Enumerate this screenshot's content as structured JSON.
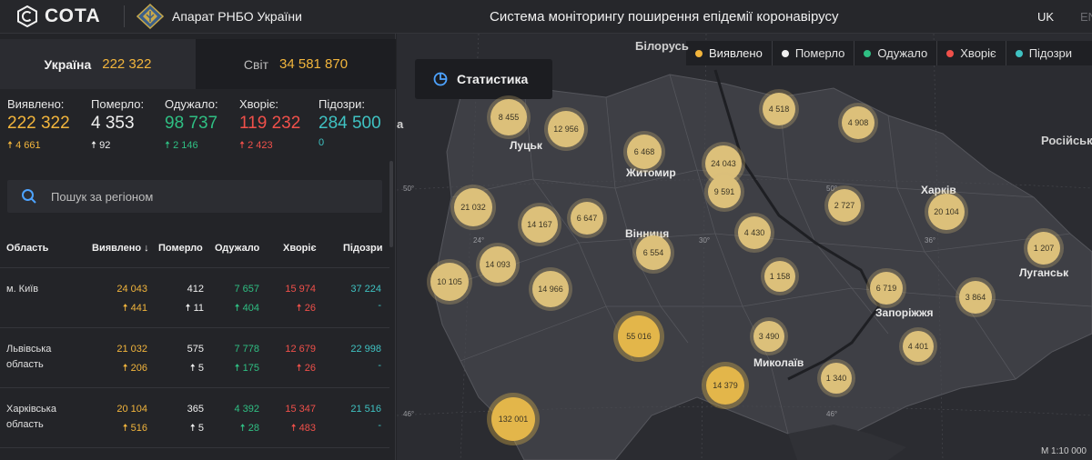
{
  "header": {
    "brand": "СОТА",
    "org": "Апарат РНБО України",
    "title": "Система моніторингу поширення епідемії коронавірусу",
    "lang_active": "UK",
    "lang_other": "EN"
  },
  "tabs": {
    "ukraine": {
      "label": "Україна",
      "value": "222 322"
    },
    "world": {
      "label": "Світ",
      "value": "34 581 870"
    }
  },
  "stats": [
    {
      "label": "Виявлено:",
      "value": "222 322",
      "delta": "4 661",
      "color": "#f2b53c"
    },
    {
      "label": "Померло:",
      "value": "4 353",
      "delta": "92",
      "color": "#f0f0f0"
    },
    {
      "label": "Одужало:",
      "value": "98 737",
      "delta": "2 146",
      "color": "#2fbf83"
    },
    {
      "label": "Хворіє:",
      "value": "119 232",
      "delta": "2 423",
      "color": "#f0504a"
    },
    {
      "label": "Підозри:",
      "value": "284 500",
      "delta": "0",
      "color": "#3fc2c2"
    }
  ],
  "search": {
    "placeholder": "Пошук за регіоном"
  },
  "table": {
    "headers": {
      "region": "Область",
      "detected": "Виявлено",
      "died": "Померло",
      "recovered": "Одужало",
      "sick": "Хворіє",
      "suspected": "Підозри"
    },
    "rows": [
      {
        "region": "м. Київ",
        "detected": "24 043",
        "detected_d": "441",
        "died": "412",
        "died_d": "11",
        "recovered": "7 657",
        "recovered_d": "404",
        "sick": "15 974",
        "sick_d": "26",
        "suspected": "37 224",
        "suspected_d": "-"
      },
      {
        "region": "Львівська область",
        "detected": "21 032",
        "detected_d": "206",
        "died": "575",
        "died_d": "5",
        "recovered": "7 778",
        "recovered_d": "175",
        "sick": "12 679",
        "sick_d": "26",
        "suspected": "22 998",
        "suspected_d": "-"
      },
      {
        "region": "Харківська область",
        "detected": "20 104",
        "detected_d": "516",
        "died": "365",
        "died_d": "5",
        "recovered": "4 392",
        "recovered_d": "28",
        "sick": "15 347",
        "sick_d": "483",
        "suspected": "21 516",
        "suspected_d": "-"
      }
    ]
  },
  "map": {
    "button_label": "Статистика",
    "legend": [
      {
        "label": "Виявлено",
        "color": "#f2b53c"
      },
      {
        "label": "Померло",
        "color": "#f0f0f0"
      },
      {
        "label": "Одужало",
        "color": "#2fbf83"
      },
      {
        "label": "Хворіє",
        "color": "#f0504a"
      },
      {
        "label": "Підозри",
        "color": "#3fc2c2"
      }
    ],
    "bubbles": [
      "8 455",
      "12 956",
      "6 468",
      "4 518",
      "4 908",
      "24 043",
      "9 591",
      "21 032",
      "14 167",
      "6 647",
      "2 727",
      "20 104",
      "4 430",
      "6 554",
      "14 093",
      "10 105",
      "14 966",
      "1 158",
      "1 207",
      "6 719",
      "3 864",
      "55 016",
      "3 490",
      "4 401",
      "1 340",
      "14 379",
      "132 001"
    ],
    "cities": [
      "Луцьк",
      "Житомир",
      "Вінниця",
      "Харків",
      "Луганськ",
      "Запоріжжя",
      "Миколаїв"
    ],
    "countries": [
      "Білорусь",
      "Російськ"
    ],
    "graticule": [
      "50°",
      "24°",
      "30°",
      "36°",
      "50°",
      "46°",
      "46°"
    ],
    "edge_label": "а",
    "scale": "М 1:10 000"
  }
}
